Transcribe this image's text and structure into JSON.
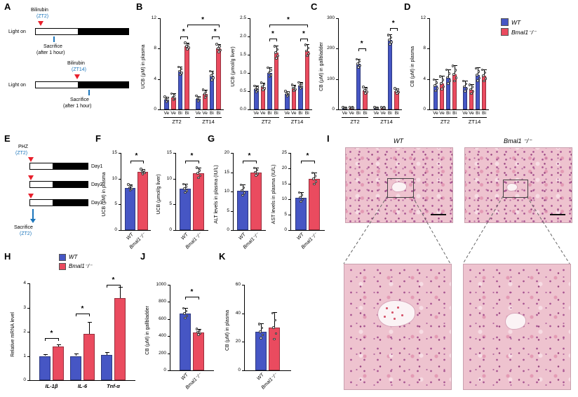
{
  "palette": {
    "wt": "#4656c4",
    "ko": "#ea4b5f",
    "blue_text": "#1b75bb",
    "red_marker": "#e8202c"
  },
  "legend": {
    "wt": "WT",
    "ko": "Bmal1⁻/⁻"
  },
  "panel_letters": {
    "A": "A",
    "B": "B",
    "C": "C",
    "D": "D",
    "E": "E",
    "F": "F",
    "G": "G",
    "H": "H",
    "I": "I",
    "J": "J",
    "K": "K"
  },
  "schematic_a": {
    "top": {
      "light_on": "Light on",
      "drug": "Bilirubin",
      "zt": "(ZT2)",
      "sacrifice": "Sacrifice",
      "after": "(after 1 hour)"
    },
    "bottom": {
      "light_on": "Light on",
      "drug": "Bilirubin",
      "zt": "(ZT14)",
      "sacrifice": "Sacrifice",
      "after": "(after 1 hour)"
    }
  },
  "schematic_e": {
    "drug": "PHZ",
    "zt": "(ZT2)",
    "days": [
      "Day1",
      "Day2",
      "Day3"
    ],
    "sacrifice": "Sacrifice",
    "sac_zt": "(ZT2)"
  },
  "histology": {
    "left_label": "WT",
    "right_label": "Bmal1 ⁻/⁻"
  },
  "chart_data": {
    "B1": {
      "type": "bar",
      "ylabel": "UCB (μM) in plasma",
      "ylim": [
        0,
        12
      ],
      "yticks": [
        0,
        4,
        8,
        12
      ],
      "bar_labels": [
        "Ve",
        "Ve",
        "Bi",
        "Bi",
        "Ve",
        "Ve",
        "Bi",
        "Bi"
      ],
      "series": [
        "wt",
        "ko",
        "wt",
        "ko",
        "wt",
        "ko",
        "wt",
        "ko"
      ],
      "values": [
        1.3,
        1.6,
        5.0,
        8.3,
        1.4,
        2.0,
        4.4,
        8.0
      ],
      "errors": [
        0.4,
        0.5,
        0.6,
        0.5,
        0.4,
        0.6,
        0.7,
        0.6
      ],
      "groups": [
        {
          "label": "ZT2",
          "from": 0,
          "to": 3
        },
        {
          "label": "ZT14",
          "from": 4,
          "to": 7
        }
      ],
      "group_line": true,
      "sig": [
        {
          "from": 2,
          "to": 3,
          "y": 9.6,
          "label": "*"
        },
        {
          "from": 6,
          "to": 7,
          "y": 9.6,
          "label": "*"
        },
        {
          "from": 3,
          "to": 7,
          "y": 11.2,
          "label": "*"
        }
      ]
    },
    "B2": {
      "type": "bar",
      "ylabel": "UCB (μmol/g liver)",
      "ylim": [
        0,
        2.5
      ],
      "yticks": [
        0,
        0.5,
        1,
        1.5,
        2,
        2.5
      ],
      "ydec": 1,
      "bar_labels": [
        "Ve",
        "Ve",
        "Bi",
        "Bi",
        "Ve",
        "Ve",
        "Bi",
        "Bi"
      ],
      "series": [
        "wt",
        "ko",
        "wt",
        "ko",
        "wt",
        "ko",
        "wt",
        "ko"
      ],
      "values": [
        0.55,
        0.62,
        1.0,
        1.55,
        0.42,
        0.58,
        0.65,
        1.6
      ],
      "errors": [
        0.1,
        0.12,
        0.15,
        0.2,
        0.08,
        0.1,
        0.1,
        0.18
      ],
      "groups": [
        {
          "label": "ZT2",
          "from": 0,
          "to": 3
        },
        {
          "label": "ZT14",
          "from": 4,
          "to": 7
        }
      ],
      "group_line": true,
      "sig": [
        {
          "from": 2,
          "to": 3,
          "y": 1.95,
          "label": "*"
        },
        {
          "from": 6,
          "to": 7,
          "y": 1.95,
          "label": "*"
        },
        {
          "from": 2,
          "to": 7,
          "y": 2.33,
          "label": "*"
        }
      ]
    },
    "C": {
      "type": "bar",
      "ylabel": "CB (μM) in gallbladder",
      "ylim": [
        0,
        300
      ],
      "yticks": [
        0,
        100,
        200,
        300
      ],
      "bar_labels": [
        "Ve",
        "Ve",
        "Bi",
        "Bi",
        "Ve",
        "Ve",
        "Bi",
        "Bi"
      ],
      "series": [
        "wt",
        "ko",
        "wt",
        "ko",
        "wt",
        "ko",
        "wt",
        "ko"
      ],
      "values": [
        4,
        5,
        150,
        62,
        4,
        5,
        228,
        60
      ],
      "errors": [
        2,
        2,
        16,
        12,
        2,
        2,
        18,
        10
      ],
      "groups": [
        {
          "label": "ZT2",
          "from": 0,
          "to": 3
        },
        {
          "label": "ZT14",
          "from": 4,
          "to": 7
        }
      ],
      "group_line": true,
      "sig": [
        {
          "from": 2,
          "to": 3,
          "y": 200,
          "label": "*"
        },
        {
          "from": 6,
          "to": 7,
          "y": 268,
          "label": "*"
        }
      ]
    },
    "D": {
      "type": "bar",
      "ylabel": "CB (μM) in plasma",
      "ylim": [
        0,
        12
      ],
      "yticks": [
        0,
        4,
        8,
        12
      ],
      "bar_labels": [
        "Ve",
        "Ve",
        "Bi",
        "Bi",
        "Ve",
        "Ve",
        "Bi",
        "Bi"
      ],
      "series": [
        "wt",
        "ko",
        "wt",
        "ko",
        "wt",
        "ko",
        "wt",
        "ko"
      ],
      "values": [
        3.1,
        3.4,
        4.2,
        4.6,
        3.0,
        2.6,
        4.5,
        4.4
      ],
      "errors": [
        0.9,
        1.0,
        1.1,
        1.2,
        0.8,
        0.7,
        1.0,
        0.9
      ],
      "groups": [
        {
          "label": "ZT2",
          "from": 0,
          "to": 3
        },
        {
          "label": "ZT14",
          "from": 4,
          "to": 7
        }
      ],
      "group_line": true,
      "sig": []
    },
    "F1": {
      "type": "bar",
      "ylabel": "UCB (μM) in plasma",
      "ylim": [
        0,
        15
      ],
      "yticks": [
        0,
        5,
        10,
        15
      ],
      "rot": true,
      "bar_labels": [
        "WT",
        "Bmal1⁻/⁻"
      ],
      "series": [
        "wt",
        "ko"
      ],
      "values": [
        8.2,
        11.3
      ],
      "errors": [
        0.7,
        0.6
      ],
      "sig": [
        {
          "from": 0,
          "to": 1,
          "y": 13.5,
          "label": "*"
        }
      ]
    },
    "F2": {
      "type": "bar",
      "ylabel": "UCB (μmol/g liver)",
      "ylim": [
        0,
        15
      ],
      "yticks": [
        0,
        5,
        10,
        15
      ],
      "rot": true,
      "bar_labels": [
        "WT",
        "Bmal1⁻/⁻"
      ],
      "series": [
        "wt",
        "ko"
      ],
      "values": [
        8.0,
        11.0
      ],
      "errors": [
        1.0,
        1.2
      ],
      "sig": [
        {
          "from": 0,
          "to": 1,
          "y": 13.5,
          "label": "*"
        }
      ]
    },
    "G1": {
      "type": "bar",
      "ylabel": "ALT levels in plasma (IU/L)",
      "ylim": [
        0,
        20
      ],
      "yticks": [
        0,
        5,
        10,
        15,
        20
      ],
      "rot": true,
      "bar_labels": [
        "WT",
        "Bmal1⁻/⁻"
      ],
      "series": [
        "wt",
        "ko"
      ],
      "values": [
        10.2,
        15.0
      ],
      "errors": [
        1.6,
        1.2
      ],
      "sig": [
        {
          "from": 0,
          "to": 1,
          "y": 18,
          "label": "*"
        }
      ]
    },
    "G2": {
      "type": "bar",
      "ylabel": "AST levels in plasma (IU/L)",
      "ylim": [
        0,
        25
      ],
      "yticks": [
        0,
        5,
        10,
        15,
        20,
        25
      ],
      "rot": true,
      "bar_labels": [
        "WT",
        "Bmal1⁻/⁻"
      ],
      "series": [
        "wt",
        "ko"
      ],
      "values": [
        10.5,
        16.5
      ],
      "errors": [
        1.8,
        2.2
      ],
      "sig": [
        {
          "from": 0,
          "to": 1,
          "y": 22.5,
          "label": "*"
        }
      ]
    },
    "H": {
      "type": "bar",
      "ylabel": "Relative mRNA level",
      "ylim": [
        0,
        4
      ],
      "yticks": [
        0,
        1,
        2,
        3,
        4
      ],
      "points": false,
      "series": [
        "wt",
        "ko",
        "wt",
        "ko",
        "wt",
        "ko"
      ],
      "values": [
        1.0,
        1.4,
        1.0,
        1.9,
        1.05,
        3.4
      ],
      "errors": [
        0.07,
        0.08,
        0.1,
        0.5,
        0.1,
        0.45
      ],
      "groups": [
        {
          "label": "IL-1β",
          "from": 0,
          "to": 1
        },
        {
          "label": "IL-6",
          "from": 2,
          "to": 3
        },
        {
          "label": "Tnf-α",
          "from": 4,
          "to": 5
        }
      ],
      "group_italic": true,
      "sig": [
        {
          "from": 0,
          "to": 1,
          "y": 1.75,
          "label": "*"
        },
        {
          "from": 2,
          "to": 3,
          "y": 2.75,
          "label": "*"
        },
        {
          "from": 4,
          "to": 5,
          "y": 3.95,
          "label": "*"
        }
      ]
    },
    "J": {
      "type": "bar",
      "ylabel": "CB (μM) in gallbladder",
      "ylim": [
        0,
        1000
      ],
      "yticks": [
        0,
        200,
        400,
        600,
        800,
        1000
      ],
      "rot": true,
      "mleft": 38,
      "bar_labels": [
        "WT",
        "Bmal1⁻/⁻"
      ],
      "series": [
        "wt",
        "ko"
      ],
      "values": [
        660,
        445
      ],
      "errors": [
        70,
        40
      ],
      "sig": [
        {
          "from": 0,
          "to": 1,
          "y": 860,
          "label": "*"
        }
      ]
    },
    "K": {
      "type": "bar",
      "ylabel": "CB (μM) in plasma",
      "ylim": [
        0,
        60
      ],
      "yticks": [
        0,
        20,
        40,
        60
      ],
      "rot": true,
      "bar_labels": [
        "WT",
        "Bmal1⁻/⁻"
      ],
      "series": [
        "wt",
        "ko"
      ],
      "values": [
        27,
        30
      ],
      "errors": [
        6,
        11
      ],
      "sig": []
    }
  }
}
